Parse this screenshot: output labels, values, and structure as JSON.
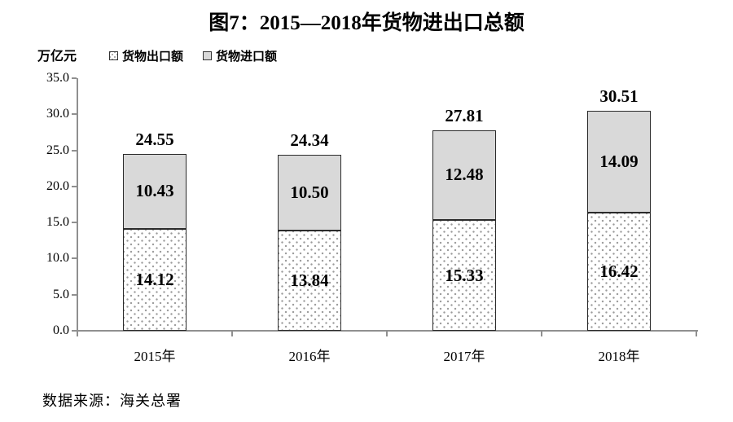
{
  "page": {
    "title": "图7：2015—2018年货物进出口总额",
    "source": "数据来源：海关总署"
  },
  "chart_data": {
    "type": "bar",
    "stacked": true,
    "title": "图7：2015—2018年货物进出口总额",
    "unit_label": "万亿元",
    "categories": [
      "2015年",
      "2016年",
      "2017年",
      "2018年"
    ],
    "series": [
      {
        "name": "货物出口额",
        "values": [
          14.12,
          13.84,
          15.33,
          16.42
        ],
        "labels": [
          "14.12",
          "13.84",
          "15.33",
          "16.42"
        ],
        "style": "dotted-white"
      },
      {
        "name": "货物进口额",
        "values": [
          10.43,
          10.5,
          12.48,
          14.09
        ],
        "labels": [
          "10.43",
          "10.50",
          "12.48",
          "14.09"
        ],
        "style": "solid-gray"
      }
    ],
    "totals": [
      24.55,
      24.34,
      27.81,
      30.51
    ],
    "total_labels": [
      "24.55",
      "24.34",
      "27.81",
      "30.51"
    ],
    "ylim": [
      0,
      35
    ],
    "ytick_step": 5,
    "ytick_labels": [
      "0.0",
      "5.0",
      "10.0",
      "15.0",
      "20.0",
      "25.0",
      "30.0",
      "35.0"
    ],
    "grid": false,
    "legend_position": "top-left",
    "colors": {
      "import_fill": "#d9d9d9",
      "export_fill": "#ffffff",
      "dot_color": "#9b9b9b",
      "bar_border": "#2b2b2b",
      "axis": "#909090",
      "text": "#000000"
    }
  }
}
